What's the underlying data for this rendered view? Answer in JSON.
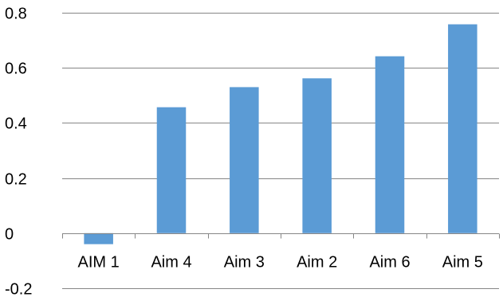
{
  "chart_data": {
    "type": "bar",
    "categories": [
      "AIM 1",
      "Aim 4",
      "Aim 3",
      "Aim 2",
      "Aim 6",
      "Aim 5"
    ],
    "values": [
      -0.04,
      0.457,
      0.53,
      0.562,
      0.642,
      0.758
    ],
    "yticks": [
      -0.2,
      0,
      0.2,
      0.4,
      0.6,
      0.8
    ],
    "ytick_labels": [
      "-0.2",
      "0",
      "0.2",
      "0.4",
      "0.6",
      "0.8"
    ],
    "ylim": [
      -0.2,
      0.8
    ],
    "title": "",
    "xlabel": "",
    "ylabel": "",
    "grid": true,
    "legend": "none",
    "colors": {
      "bar": "#5b9bd5",
      "grid": "#868686",
      "axis": "#868686"
    }
  }
}
